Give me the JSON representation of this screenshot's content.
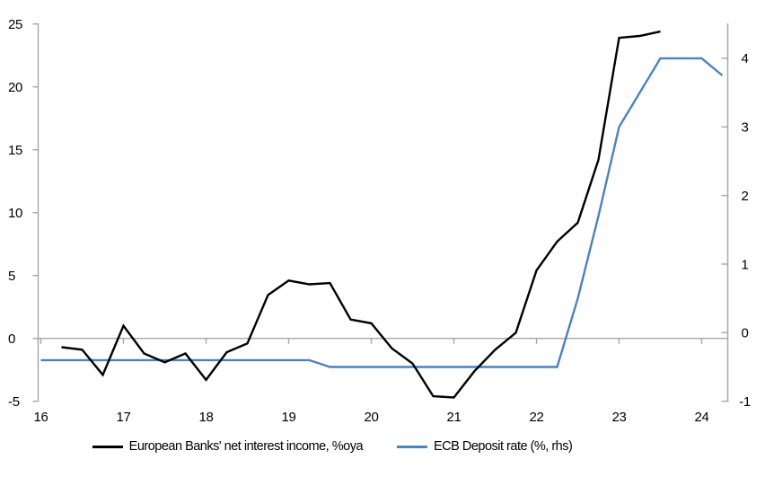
{
  "chart_data": {
    "type": "line",
    "legend_position": "bottom",
    "grid": "zero-line-only",
    "x_axis": {
      "ticks": [
        16,
        17,
        18,
        19,
        20,
        21,
        22,
        23,
        24
      ],
      "range": [
        16,
        24.4
      ]
    },
    "left_axis": {
      "ticks": [
        25,
        20,
        15,
        10,
        5,
        0,
        -5
      ],
      "range": [
        -5,
        25
      ]
    },
    "right_axis": {
      "ticks": [
        4,
        3,
        2,
        1,
        0,
        -1
      ],
      "range": [
        -1,
        4.5
      ]
    },
    "series": [
      {
        "name": "European Banks' net interest income, %oya",
        "axis": "left",
        "color": "#000000",
        "x": [
          16.25,
          16.5,
          16.75,
          17.0,
          17.25,
          17.5,
          17.75,
          18.0,
          18.25,
          18.5,
          18.75,
          19.0,
          19.25,
          19.5,
          19.75,
          20.0,
          20.25,
          20.5,
          20.75,
          21.0,
          21.25,
          21.5,
          21.75,
          22.0,
          22.25,
          22.5,
          22.75,
          23.0,
          23.25,
          23.5
        ],
        "values": [
          -0.7,
          -0.9,
          -2.9,
          1.0,
          -1.2,
          -1.9,
          -1.2,
          -3.3,
          -1.1,
          -0.4,
          3.45,
          4.6,
          4.3,
          4.4,
          1.5,
          1.2,
          -0.8,
          -2.0,
          -4.6,
          -4.7,
          -2.6,
          -0.9,
          0.45,
          5.4,
          7.7,
          9.2,
          14.2,
          23.9,
          24.05,
          24.4
        ]
      },
      {
        "name": "ECB Deposit rate (%, rhs)",
        "axis": "right",
        "color": "#4d82bc",
        "x": [
          16.0,
          16.25,
          16.5,
          16.75,
          17.0,
          17.25,
          17.5,
          17.75,
          18.0,
          18.25,
          18.5,
          18.75,
          19.0,
          19.25,
          19.5,
          19.75,
          20.0,
          20.25,
          20.5,
          20.75,
          21.0,
          21.25,
          21.5,
          21.75,
          22.0,
          22.25,
          22.5,
          22.75,
          23.0,
          23.25,
          23.5,
          23.75,
          24.0,
          24.25
        ],
        "values": [
          -0.4,
          -0.4,
          -0.4,
          -0.4,
          -0.4,
          -0.4,
          -0.4,
          -0.4,
          -0.4,
          -0.4,
          -0.4,
          -0.4,
          -0.4,
          -0.4,
          -0.5,
          -0.5,
          -0.5,
          -0.5,
          -0.5,
          -0.5,
          -0.5,
          -0.5,
          -0.5,
          -0.5,
          -0.5,
          -0.5,
          0.5,
          1.7,
          3.0,
          3.5,
          4.0,
          4.0,
          4.0,
          3.75
        ]
      }
    ]
  },
  "legend": {
    "items": [
      {
        "label": "European Banks' net interest income, %oya",
        "color": "#000000"
      },
      {
        "label": "ECB Deposit rate (%, rhs)",
        "color": "#4d82bc"
      }
    ]
  }
}
